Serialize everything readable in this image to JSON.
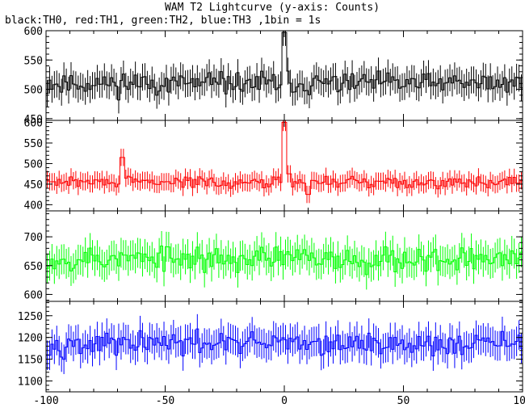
{
  "chart_data": {
    "type": "line",
    "title": "WAM T2 Lightcurve (y-axis: Counts)",
    "subtitle": "black:TH0, red:TH1, green:TH2, blue:TH3 ,1bin = 1s",
    "x": {
      "range": [
        -100,
        100
      ],
      "bin_seconds": 1,
      "tick_values": [
        -100,
        -50,
        0,
        50,
        100
      ],
      "tick_labels": [
        "-100",
        "-50",
        "0",
        "50",
        "100"
      ]
    },
    "panels": [
      {
        "name": "TH0",
        "color": "#000000",
        "ylim": [
          447,
          600
        ],
        "y_tick_values": [
          450,
          500,
          550,
          600
        ],
        "y_tick_labels": [
          "450",
          "500",
          "550",
          "600"
        ],
        "baseline": 510,
        "noise_amplitude": 24,
        "error_bar_halfwidth": 23,
        "features": [
          {
            "x": 0,
            "value": 597,
            "label": "spike"
          }
        ]
      },
      {
        "name": "TH1",
        "color": "#ff0000",
        "ylim": [
          385,
          605
        ],
        "y_tick_values": [
          400,
          450,
          500,
          550,
          600
        ],
        "y_tick_labels": [
          "400",
          "450",
          "500",
          "550",
          "600"
        ],
        "baseline": 455,
        "noise_amplitude": 17,
        "error_bar_halfwidth": 21,
        "features": [
          {
            "x": -68,
            "value": 515
          },
          {
            "x": 0,
            "value": 600,
            "label": "spike"
          },
          {
            "x": 2,
            "value": 475
          },
          {
            "x": 10,
            "value": 425
          }
        ]
      },
      {
        "name": "TH2",
        "color": "#00ff00",
        "ylim": [
          588,
          745
        ],
        "y_tick_values": [
          600,
          650,
          700
        ],
        "y_tick_labels": [
          "600",
          "650",
          "700"
        ],
        "baseline": 662,
        "noise_amplitude": 28,
        "error_bar_halfwidth": 26,
        "features": []
      },
      {
        "name": "TH3",
        "color": "#0000ff",
        "ylim": [
          1075,
          1283
        ],
        "y_tick_values": [
          1100,
          1150,
          1200,
          1250
        ],
        "y_tick_labels": [
          "1100",
          "1150",
          "1200",
          "1250"
        ],
        "baseline": 1185,
        "noise_amplitude": 34,
        "error_bar_halfwidth": 34,
        "features": []
      }
    ]
  }
}
